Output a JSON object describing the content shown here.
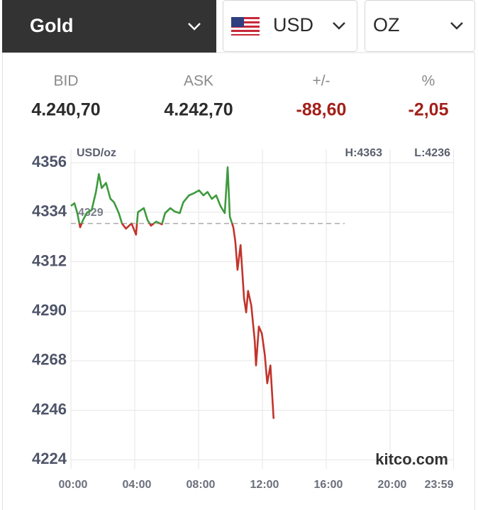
{
  "header": {
    "metal": "Gold",
    "currency": "USD",
    "unit": "OZ"
  },
  "quote": {
    "labels": [
      "BID",
      "ASK",
      "+/-",
      "%"
    ],
    "values": [
      "4.240,70",
      "4.242,70",
      "-88,60",
      "-2,05"
    ]
  },
  "chart_data": {
    "type": "line",
    "unit_label": "USD/oz",
    "high": "H:4363",
    "low": "L:4236",
    "watermark": "kitco.com",
    "reference_line": 4329,
    "x": [
      0,
      0.22,
      0.4,
      0.58,
      0.76,
      0.99,
      1.3,
      1.57,
      1.75,
      1.93,
      2.2,
      2.47,
      2.7,
      3.0,
      3.2,
      3.45,
      3.8,
      4.08,
      4.2,
      4.57,
      4.8,
      5.02,
      5.34,
      5.7,
      5.9,
      6.23,
      6.5,
      6.82,
      7.04,
      7.4,
      7.7,
      8.03,
      8.3,
      8.56,
      8.83,
      9.1,
      9.37,
      9.64,
      9.82,
      9.96,
      10.18,
      10.3,
      10.44,
      10.63,
      10.85,
      10.98,
      11.1,
      11.3,
      11.52,
      11.6,
      11.78,
      11.97,
      12.15,
      12.3,
      12.5,
      12.7
    ],
    "values": [
      4336.8,
      4338,
      4333.6,
      4327.3,
      4330.5,
      4333.6,
      4335,
      4343,
      4351,
      4344.7,
      4347,
      4340,
      4338.4,
      4333.6,
      4329,
      4326.7,
      4329,
      4324,
      4334,
      4335.8,
      4330.5,
      4328,
      4329.8,
      4328.6,
      4333.6,
      4335.8,
      4334.3,
      4333.6,
      4338.4,
      4341.5,
      4342.4,
      4343.7,
      4341.5,
      4343,
      4339.9,
      4341.5,
      4336.8,
      4333.6,
      4354,
      4332,
      4327.3,
      4321,
      4308.4,
      4319.4,
      4295.8,
      4289.5,
      4299,
      4292.6,
      4276.9,
      4265.9,
      4283.2,
      4280,
      4270.6,
      4258,
      4265.9,
      4242.2
    ],
    "color_above": "#3d9a3d",
    "color_below": "#c2332b",
    "xlim": [
      0,
      24
    ],
    "ylim": [
      4220,
      4362
    ],
    "xticks": [
      {
        "value": 0,
        "label": "00:00"
      },
      {
        "value": 4,
        "label": "04:00"
      },
      {
        "value": 8,
        "label": "08:00"
      },
      {
        "value": 12,
        "label": "12:00"
      },
      {
        "value": 16,
        "label": "16:00"
      },
      {
        "value": 20,
        "label": "20:00"
      },
      {
        "value": 23.98,
        "label": "23:59"
      }
    ],
    "yticks": [
      4224,
      4246,
      4268,
      4290,
      4312,
      4334,
      4356
    ],
    "x_minor_grid_step": 1,
    "grid": true
  }
}
